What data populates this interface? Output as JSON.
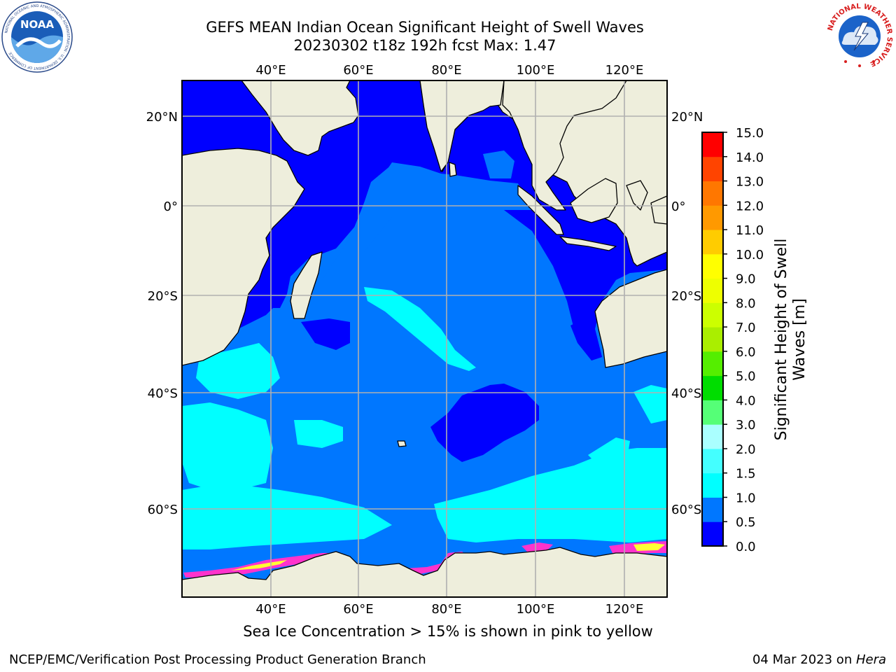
{
  "header": {
    "title_line1": "GEFS MEAN Indian Ocean Significant Height of Swell Waves",
    "title_line2": "20230302 t18z 192h fcst   Max: 1.47"
  },
  "logos": {
    "noaa_text": "NOAA",
    "noaa_ring_text": "NATIONAL OCEANIC AND ATMOSPHERIC ADMINISTRATION · U.S. DEPARTMENT OF COMMERCE",
    "nws_ring_text": "NATIONAL WEATHER SERVICE"
  },
  "map": {
    "lon_labels": [
      "40°E",
      "60°E",
      "80°E",
      "100°E",
      "120°E"
    ],
    "lat_labels": [
      "20°N",
      "0°",
      "20°S",
      "40°S",
      "60°S"
    ],
    "colors": {
      "land": "#eeeedc",
      "ocean_low": "#0000ff",
      "ocean_mid": "#0077ff",
      "ocean_cyan": "#00ffff",
      "grid": "#b0b0b0",
      "ice_pink": "#ff33cc",
      "ice_yellow": "#ffff33"
    }
  },
  "colorbar": {
    "label_line1": "Significant Height of Swell",
    "label_line2": "Waves [m]",
    "ticks": [
      "0.0",
      "0.5",
      "1.0",
      "1.5",
      "2.0",
      "3.0",
      "4.0",
      "5.0",
      "6.0",
      "7.0",
      "8.0",
      "9.0",
      "10.0",
      "11.0",
      "12.0",
      "13.0",
      "14.0",
      "15.0"
    ],
    "colors": [
      "#0000ff",
      "#0077ff",
      "#00ffff",
      "#44ffff",
      "#aaffff",
      "#55ff77",
      "#00dd00",
      "#55ee00",
      "#aaee00",
      "#ccff00",
      "#eeff00",
      "#ffff00",
      "#ffcc00",
      "#ff9900",
      "#ff7700",
      "#ff4400",
      "#ff0000"
    ]
  },
  "note": "Sea Ice Concentration > 15% is shown in pink to yellow",
  "footer": {
    "left": "NCEP/EMC/Verification Post Processing Product Generation Branch",
    "right_date": "04 Mar 2023 on ",
    "right_host": "Hera"
  }
}
